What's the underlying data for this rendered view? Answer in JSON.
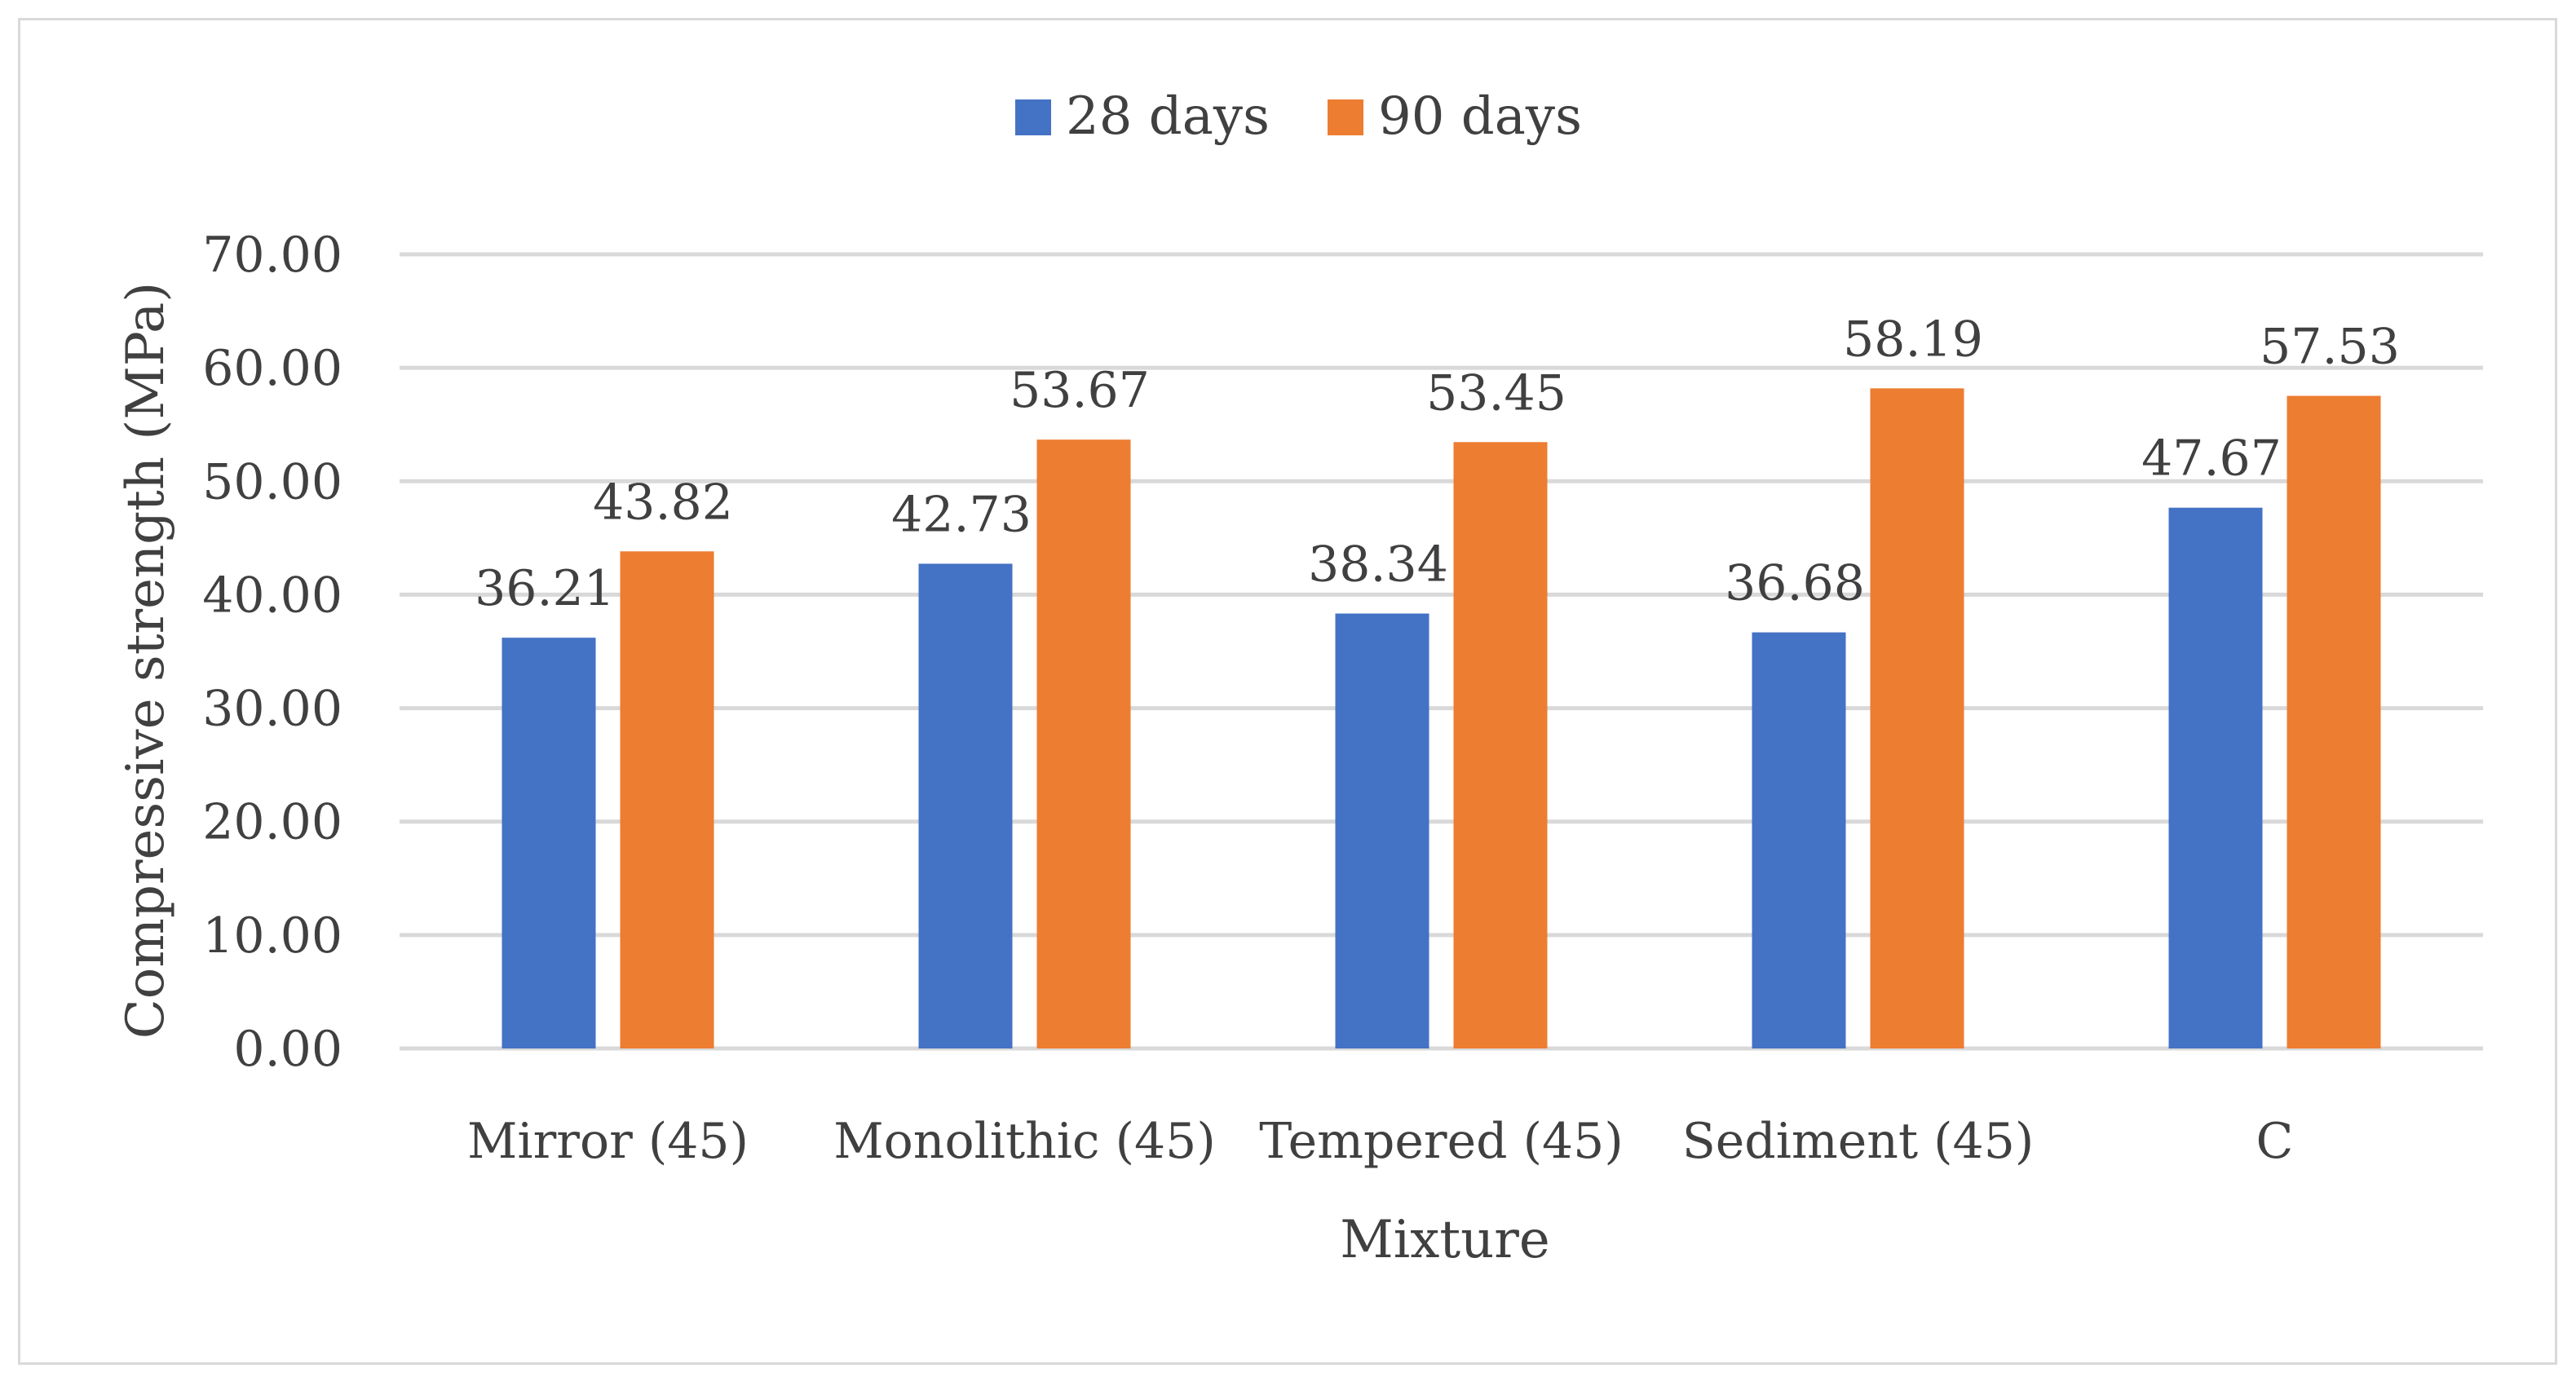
{
  "chart_data": {
    "type": "bar",
    "title": "",
    "xlabel": "Mixture",
    "ylabel": "Compressive strength (MPa)",
    "ylim": [
      0,
      70
    ],
    "ytick_step": 10,
    "ytick_decimals": 2,
    "grid": true,
    "legend_position": "top-center",
    "categories": [
      "Mirror (45)",
      "Monolithic (45)",
      "Tempered (45)",
      "Sediment (45)",
      "C"
    ],
    "series": [
      {
        "name": "28 days",
        "color": "#4472c4",
        "values": [
          36.21,
          42.73,
          38.34,
          36.68,
          47.67
        ]
      },
      {
        "name": "90 days",
        "color": "#ed7d31",
        "values": [
          43.82,
          53.67,
          53.45,
          58.19,
          57.53
        ]
      }
    ]
  }
}
